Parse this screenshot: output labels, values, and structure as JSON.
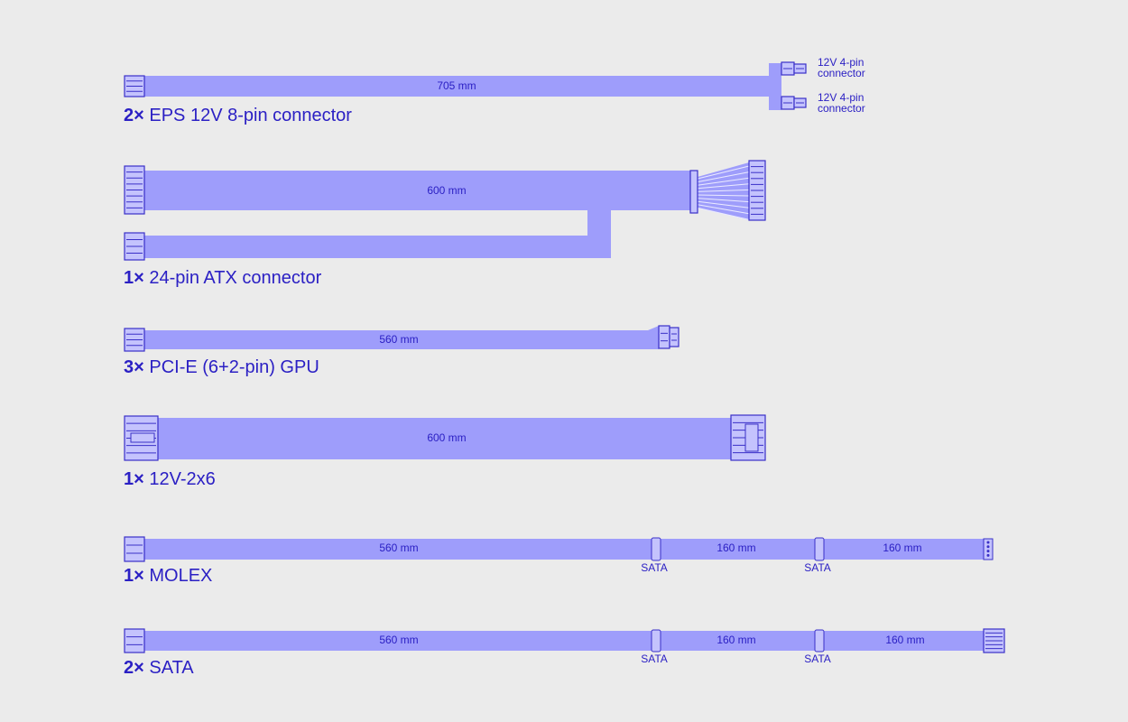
{
  "cables": [
    {
      "count": "2×",
      "name": "EPS 12V 8-pin connector",
      "lengths": [
        "705 mm"
      ],
      "branches": [
        [
          "12V 4-pin",
          "connector"
        ],
        [
          "12V 4-pin",
          "connector"
        ]
      ]
    },
    {
      "count": "1×",
      "name": "24-pin ATX connector",
      "lengths": [
        "600 mm"
      ]
    },
    {
      "count": "3×",
      "name": "PCI-E (6+2-pin) GPU",
      "lengths": [
        "560 mm"
      ]
    },
    {
      "count": "1×",
      "name": "12V-2x6",
      "lengths": [
        "600 mm"
      ]
    },
    {
      "count": "1×",
      "name": "MOLEX",
      "lengths": [
        "560 mm",
        "160 mm",
        "160 mm"
      ],
      "taps": [
        "SATA",
        "SATA"
      ]
    },
    {
      "count": "2×",
      "name": "SATA",
      "lengths": [
        "560 mm",
        "160 mm",
        "160 mm"
      ],
      "taps": [
        "SATA",
        "SATA"
      ]
    }
  ]
}
